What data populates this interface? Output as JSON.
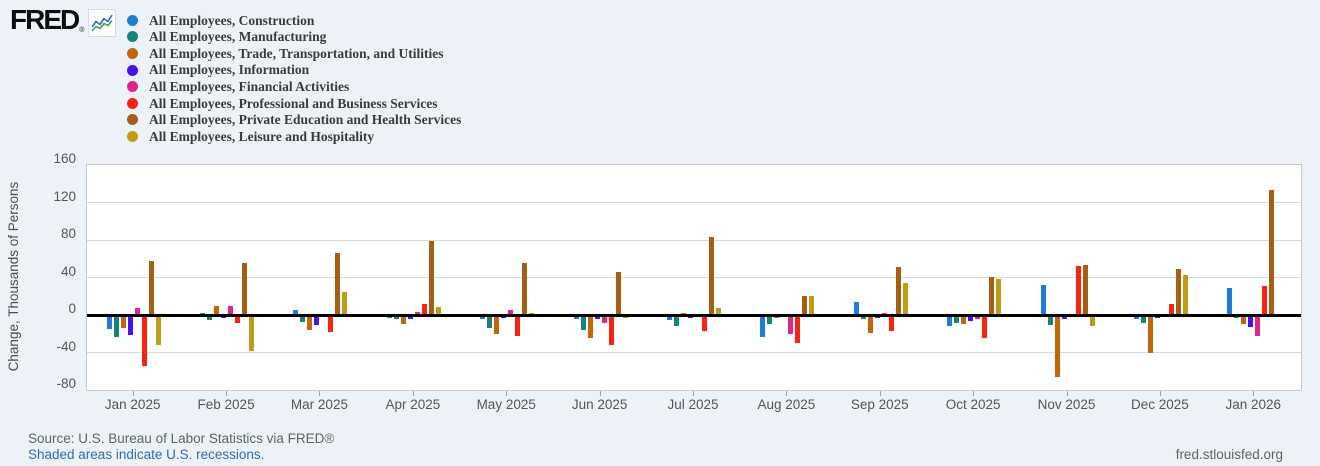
{
  "header": {
    "logo_text": "FRED",
    "logo_reg": "®"
  },
  "chart_data": {
    "type": "bar",
    "title": "",
    "xlabel": "",
    "ylabel": "Change, Thousands of Persons",
    "ylim": [
      -80,
      160
    ],
    "yticks": [
      160,
      120,
      80,
      40,
      0,
      -40,
      -80
    ],
    "grid": true,
    "legend_position": "top-left",
    "categories": [
      "Jan 2025",
      "Feb 2025",
      "Mar 2025",
      "Apr 2025",
      "May 2025",
      "Jun 2025",
      "Jul 2025",
      "Aug 2025",
      "Sep 2025",
      "Oct 2025",
      "Nov 2025",
      "Dec 2025",
      "Jan 2026"
    ],
    "series": [
      {
        "key": "construction",
        "name": "All Employees, Construction",
        "color": "#1b7fd9",
        "values": [
          -15,
          2,
          5,
          -3,
          -4,
          -4,
          -5,
          -23,
          14,
          -12,
          32,
          -4,
          29
        ]
      },
      {
        "key": "manufacturing",
        "name": "All Employees, Manufacturing",
        "color": "#168579",
        "values": [
          -23,
          -5,
          -7,
          -4,
          -14,
          -16,
          -12,
          -10,
          -4,
          -9,
          -11,
          -8,
          -3
        ]
      },
      {
        "key": "trade-transport-utilities",
        "name": "All Employees, Trade, Transportation, and Utilities",
        "color": "#c4650d",
        "values": [
          -14,
          10,
          -16,
          -10,
          -20,
          -25,
          2,
          -3,
          -19,
          -10,
          -66,
          -41,
          -10
        ]
      },
      {
        "key": "information",
        "name": "All Employees, Information",
        "color": "#4612f0",
        "values": [
          -21,
          -3,
          -11,
          -4,
          -3,
          -4,
          -3,
          -1,
          -3,
          -6,
          -4,
          -3,
          -13
        ]
      },
      {
        "key": "financial-activities",
        "name": "All Employees, Financial Activities",
        "color": "#e22387",
        "values": [
          7,
          10,
          0,
          3,
          5,
          -8,
          0,
          -20,
          2,
          -4,
          0,
          -2,
          -22
        ]
      },
      {
        "key": "professional-business",
        "name": "All Employees, Professional and Business Services",
        "color": "#f8230f",
        "values": [
          -54,
          -8,
          -18,
          12,
          -22,
          -32,
          -17,
          -30,
          -17,
          -24,
          52,
          12,
          31
        ]
      },
      {
        "key": "education-health",
        "name": "All Employees, Private Education and Health Services",
        "color": "#a65e12",
        "values": [
          58,
          55,
          66,
          79,
          56,
          46,
          83,
          20,
          51,
          41,
          53,
          49,
          133
        ]
      },
      {
        "key": "leisure-hospitality",
        "name": "All Employees, Leisure and Hospitality",
        "color": "#bf9c13",
        "values": [
          -32,
          -38,
          25,
          9,
          2,
          -3,
          8,
          20,
          34,
          38,
          -12,
          43,
          0
        ]
      }
    ]
  },
  "footer": {
    "source": "Source: U.S. Bureau of Labor Statistics via FRED®",
    "recession_note": "Shaded areas indicate U.S. recessions.",
    "site": "fred.stlouisfed.org"
  }
}
